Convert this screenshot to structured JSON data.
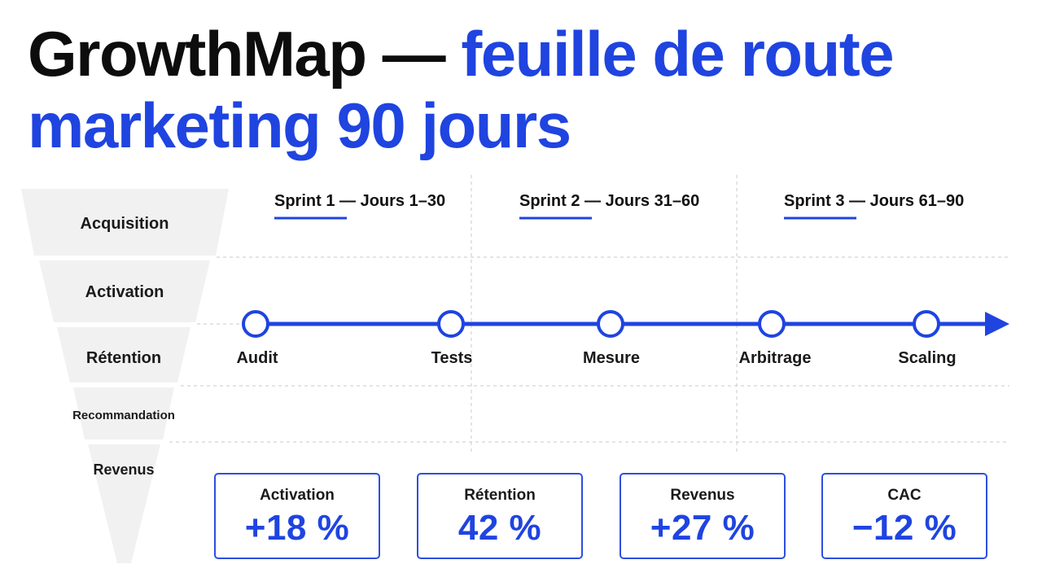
{
  "title": {
    "part1": "GrowthMap — ",
    "part2": "feuille de route marketing 90 jours"
  },
  "funnel": {
    "stages": [
      "Acquisition",
      "Activation",
      "Rétention",
      "Recommandation",
      "Revenus"
    ]
  },
  "sprints": [
    {
      "label": "Sprint 1 — Jours 1–30",
      "start_day": 1,
      "end_day": 30
    },
    {
      "label": "Sprint 2 — Jours 31–60",
      "start_day": 31,
      "end_day": 60
    },
    {
      "label": "Sprint 3 — Jours 61–90",
      "start_day": 61,
      "end_day": 90
    }
  ],
  "milestones": [
    "Audit",
    "Tests",
    "Mesure",
    "Arbitrage",
    "Scaling"
  ],
  "kpis": [
    {
      "label": "Activation",
      "value": "+18 %"
    },
    {
      "label": "Rétention",
      "value": "42 %"
    },
    {
      "label": "Revenus",
      "value": "+27 %"
    },
    {
      "label": "CAC",
      "value": "−12 %"
    }
  ],
  "colors": {
    "accent": "#1f44e0",
    "text": "#111111",
    "funnel_fill": "#f1f1f1",
    "grid": "#c8c8c8"
  }
}
